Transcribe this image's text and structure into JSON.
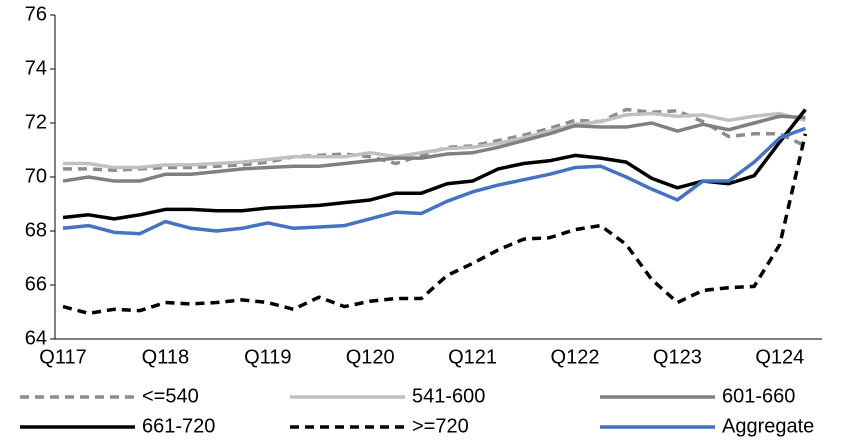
{
  "chart_data": {
    "type": "line",
    "categories": [
      "Q117",
      null,
      null,
      null,
      "Q118",
      null,
      null,
      null,
      "Q119",
      null,
      null,
      null,
      "Q120",
      null,
      null,
      null,
      "Q121",
      null,
      null,
      null,
      "Q122",
      null,
      null,
      null,
      "Q123",
      null,
      null,
      null,
      "Q124",
      null
    ],
    "ylim": [
      64,
      76
    ],
    "yticks": [
      64,
      66,
      68,
      70,
      72,
      74,
      76
    ],
    "series": [
      {
        "name": "<=540",
        "color": "#8c8c8c",
        "dashed": true,
        "values": [
          70.3,
          70.3,
          70.25,
          70.3,
          70.35,
          70.35,
          70.4,
          70.45,
          70.55,
          70.75,
          70.8,
          70.85,
          70.75,
          70.5,
          70.8,
          71.1,
          71.15,
          71.35,
          71.55,
          71.8,
          72.1,
          72.05,
          72.5,
          72.4,
          72.45,
          72.05,
          71.5,
          71.6,
          71.6,
          71.15
        ]
      },
      {
        "name": "541-600",
        "color": "#c0c0c0",
        "dashed": false,
        "values": [
          70.5,
          70.5,
          70.35,
          70.35,
          70.45,
          70.45,
          70.5,
          70.55,
          70.65,
          70.75,
          70.75,
          70.75,
          70.9,
          70.75,
          70.9,
          71.05,
          71.1,
          71.25,
          71.45,
          71.7,
          71.95,
          72.05,
          72.3,
          72.35,
          72.25,
          72.3,
          72.1,
          72.25,
          72.35,
          72.1
        ]
      },
      {
        "name": "601-660",
        "color": "#808080",
        "dashed": false,
        "values": [
          69.85,
          70.0,
          69.85,
          69.85,
          70.1,
          70.1,
          70.2,
          70.3,
          70.35,
          70.4,
          70.4,
          70.5,
          70.6,
          70.7,
          70.7,
          70.85,
          70.9,
          71.1,
          71.35,
          71.6,
          71.9,
          71.85,
          71.85,
          72.0,
          71.7,
          71.95,
          71.75,
          72.0,
          72.25,
          72.2
        ]
      },
      {
        "name": "661-720",
        "color": "#000000",
        "dashed": false,
        "values": [
          68.5,
          68.6,
          68.45,
          68.6,
          68.8,
          68.8,
          68.75,
          68.75,
          68.85,
          68.9,
          68.95,
          69.05,
          69.15,
          69.4,
          69.4,
          69.75,
          69.85,
          70.3,
          70.5,
          70.6,
          70.8,
          70.7,
          70.55,
          69.95,
          69.6,
          69.85,
          69.75,
          70.05,
          71.3,
          72.5
        ]
      },
      {
        "name": ">=720",
        "color": "#000000",
        "dashed": true,
        "values": [
          65.2,
          64.95,
          65.1,
          65.05,
          65.35,
          65.3,
          65.35,
          65.45,
          65.35,
          65.1,
          65.55,
          65.2,
          65.4,
          65.5,
          65.5,
          66.35,
          66.8,
          67.3,
          67.7,
          67.75,
          68.05,
          68.2,
          67.5,
          66.2,
          65.35,
          65.8,
          65.9,
          65.95,
          67.5,
          71.6
        ]
      },
      {
        "name": "Aggregate",
        "color": "#4472c4",
        "dashed": false,
        "values": [
          68.1,
          68.2,
          67.95,
          67.9,
          68.35,
          68.1,
          68.0,
          68.1,
          68.3,
          68.1,
          68.15,
          68.2,
          68.45,
          68.7,
          68.65,
          69.1,
          69.45,
          69.7,
          69.9,
          70.1,
          70.35,
          70.4,
          70.0,
          69.55,
          69.15,
          69.85,
          69.85,
          70.55,
          71.45,
          71.8
        ]
      }
    ]
  }
}
